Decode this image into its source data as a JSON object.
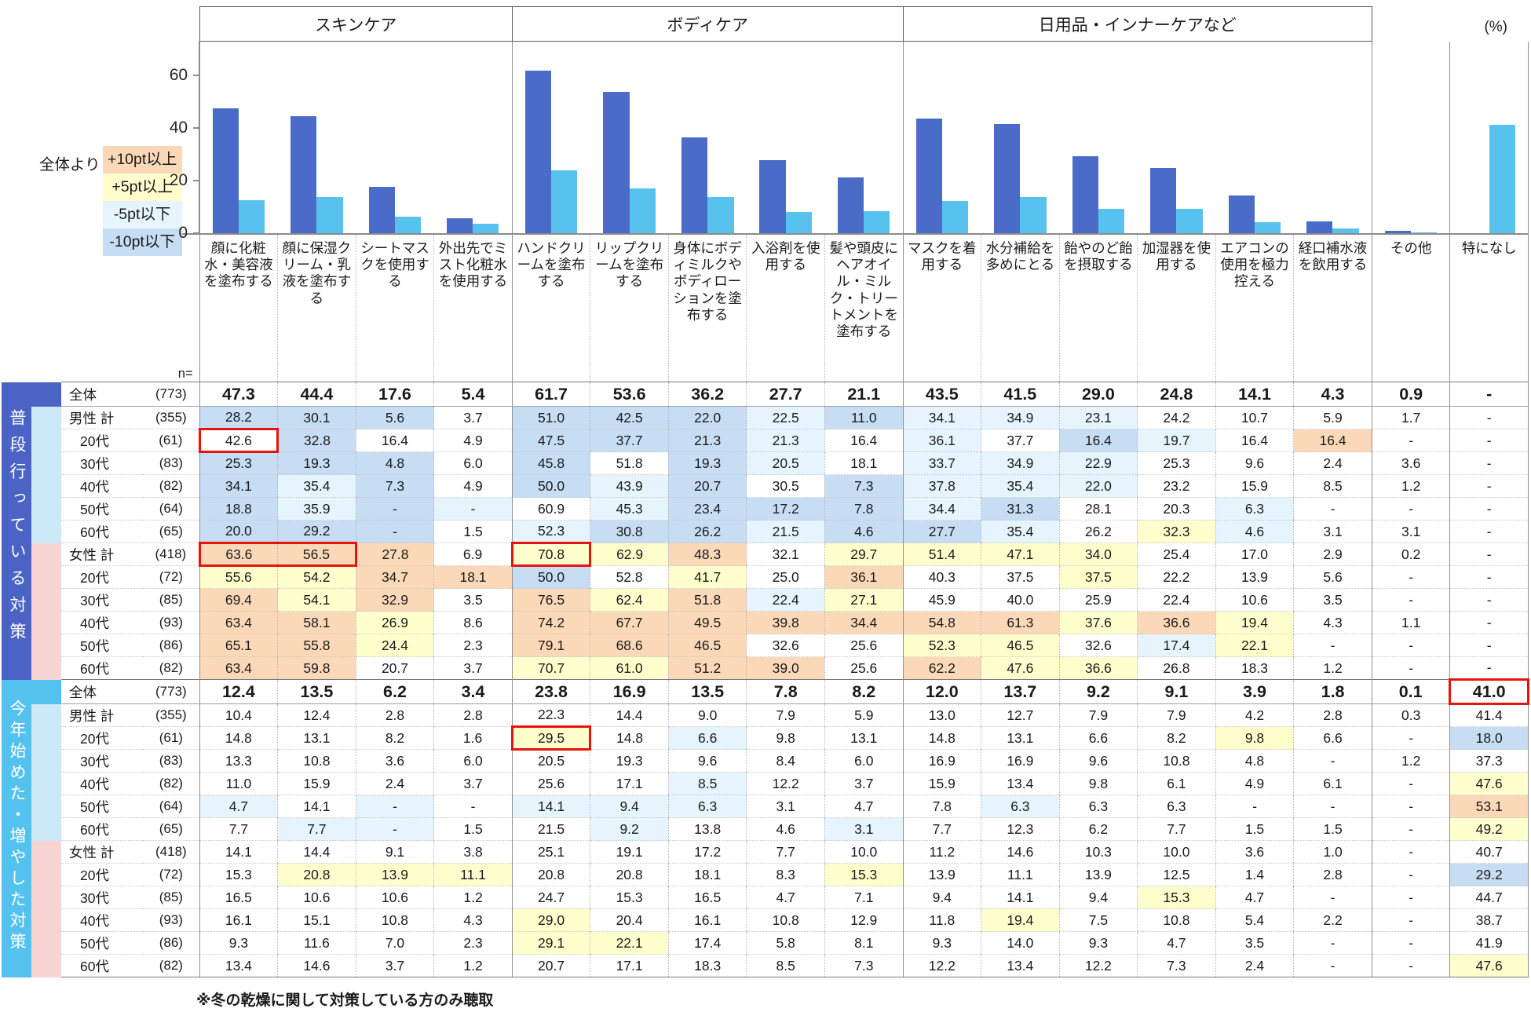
{
  "labels": {
    "n": "n=",
    "unit": "(%)",
    "note": "※冬の乾燥に関して対策している方のみ聴取"
  },
  "legend": {
    "prefix": "全体より",
    "items": [
      {
        "label": "+10pt以上",
        "key": "plus10"
      },
      {
        "label": "+5pt以上",
        "key": "plus5"
      },
      {
        "label": "-5pt以下",
        "key": "minus5"
      },
      {
        "label": "-10pt以下",
        "key": "minus10"
      }
    ]
  },
  "groups": [
    {
      "label": "スキンケア",
      "span": 4
    },
    {
      "label": "ボディケア",
      "span": 5
    },
    {
      "label": "日用品・インナーケアなど",
      "span": 6
    }
  ],
  "colors": {
    "bar_usual": "#4a6cc8",
    "bar_new": "#57c2ee",
    "section1": "#4c63c6",
    "section2": "#54c2ee",
    "male_band": "#cde9f8",
    "female_band": "#f8d5d3",
    "plus10": "#fbd9b8",
    "plus5": "#ffffce",
    "minus5": "#e6f5fd",
    "minus10": "#c7ddf4",
    "highlight": "#e8140c"
  },
  "chart_data": {
    "type": "bar",
    "categories": [
      "顔に化粧水・美容液を塗布する",
      "顔に保湿クリーム・乳液を塗布する",
      "シートマスクを使用する",
      "外出先でミスト化粧水を使用する",
      "ハンドクリームを塗布する",
      "リップクリームを塗布する",
      "身体にボディミルクやボディローションを塗布する",
      "入浴剤を使用する",
      "髪や頭皮にヘアオイル・ミルク・トリートメントを塗布する",
      "マスクを着用する",
      "水分補給を多めにとる",
      "飴やのど飴を摂取する",
      "加湿器を使用する",
      "エアコンの使用を極力控える",
      "経口補水液を飲用する",
      "その他",
      "特になし"
    ],
    "series": [
      {
        "name": "普段行っている対策（全体）",
        "color_key": "bar_usual",
        "values": [
          47.3,
          44.4,
          17.6,
          5.4,
          61.7,
          53.6,
          36.2,
          27.7,
          21.1,
          43.5,
          41.5,
          29.0,
          24.8,
          14.1,
          4.3,
          0.9,
          null
        ]
      },
      {
        "name": "今年始めた・増やした対策（全体）",
        "color_key": "bar_new",
        "values": [
          12.4,
          13.5,
          6.2,
          3.4,
          23.8,
          16.9,
          13.5,
          7.8,
          8.2,
          12.0,
          13.7,
          9.2,
          9.1,
          3.9,
          1.8,
          0.1,
          41.0
        ]
      }
    ],
    "ylim": [
      0,
      72
    ],
    "yticks": [
      0,
      20,
      40,
      60
    ],
    "unit": "(%)",
    "grid": false,
    "legend_position": "none"
  },
  "sections": [
    {
      "title": "普段行っている対策",
      "rows": [
        {
          "label": "全体",
          "n": "(773)",
          "total": true,
          "band": "none",
          "values": [
            "47.3",
            "44.4",
            "17.6",
            "5.4",
            "61.7",
            "53.6",
            "36.2",
            "27.7",
            "21.1",
            "43.5",
            "41.5",
            "29.0",
            "24.8",
            "14.1",
            "4.3",
            "0.9",
            "-"
          ]
        },
        {
          "label": "男性 計",
          "n": "(355)",
          "band": "male",
          "values": [
            "28.2",
            "30.1",
            "5.6",
            "3.7",
            "51.0",
            "42.5",
            "22.0",
            "22.5",
            "11.0",
            "34.1",
            "34.9",
            "23.1",
            "24.2",
            "10.7",
            "5.9",
            "1.7",
            "-"
          ]
        },
        {
          "label": "20代",
          "n": "(61)",
          "indent": true,
          "values": [
            "42.6",
            "32.8",
            "16.4",
            "4.9",
            "47.5",
            "37.7",
            "21.3",
            "21.3",
            "16.4",
            "36.1",
            "37.7",
            "16.4",
            "19.7",
            "16.4",
            "16.4",
            "-",
            "-"
          ]
        },
        {
          "label": "30代",
          "n": "(83)",
          "indent": true,
          "values": [
            "25.3",
            "19.3",
            "4.8",
            "6.0",
            "45.8",
            "51.8",
            "19.3",
            "20.5",
            "18.1",
            "33.7",
            "34.9",
            "22.9",
            "25.3",
            "9.6",
            "2.4",
            "3.6",
            "-"
          ]
        },
        {
          "label": "40代",
          "n": "(82)",
          "indent": true,
          "values": [
            "34.1",
            "35.4",
            "7.3",
            "4.9",
            "50.0",
            "43.9",
            "20.7",
            "30.5",
            "7.3",
            "37.8",
            "35.4",
            "22.0",
            "23.2",
            "15.9",
            "8.5",
            "1.2",
            "-"
          ]
        },
        {
          "label": "50代",
          "n": "(64)",
          "indent": true,
          "values": [
            "18.8",
            "35.9",
            "-",
            "-",
            "60.9",
            "45.3",
            "23.4",
            "17.2",
            "7.8",
            "34.4",
            "31.3",
            "28.1",
            "20.3",
            "6.3",
            "-",
            "-",
            "-"
          ]
        },
        {
          "label": "60代",
          "n": "(65)",
          "indent": true,
          "values": [
            "20.0",
            "29.2",
            "-",
            "1.5",
            "52.3",
            "30.8",
            "26.2",
            "21.5",
            "4.6",
            "27.7",
            "35.4",
            "26.2",
            "32.3",
            "4.6",
            "3.1",
            "3.1",
            "-"
          ]
        },
        {
          "label": "女性 計",
          "n": "(418)",
          "band": "female",
          "values": [
            "63.6",
            "56.5",
            "27.8",
            "6.9",
            "70.8",
            "62.9",
            "48.3",
            "32.1",
            "29.7",
            "51.4",
            "47.1",
            "34.0",
            "25.4",
            "17.0",
            "2.9",
            "0.2",
            "-"
          ]
        },
        {
          "label": "20代",
          "n": "(72)",
          "indent": true,
          "values": [
            "55.6",
            "54.2",
            "34.7",
            "18.1",
            "50.0",
            "52.8",
            "41.7",
            "25.0",
            "36.1",
            "40.3",
            "37.5",
            "37.5",
            "22.2",
            "13.9",
            "5.6",
            "-",
            "-"
          ]
        },
        {
          "label": "30代",
          "n": "(85)",
          "indent": true,
          "values": [
            "69.4",
            "54.1",
            "32.9",
            "3.5",
            "76.5",
            "62.4",
            "51.8",
            "22.4",
            "27.1",
            "45.9",
            "40.0",
            "25.9",
            "22.4",
            "10.6",
            "3.5",
            "-",
            "-"
          ]
        },
        {
          "label": "40代",
          "n": "(93)",
          "indent": true,
          "values": [
            "63.4",
            "58.1",
            "26.9",
            "8.6",
            "74.2",
            "67.7",
            "49.5",
            "39.8",
            "34.4",
            "54.8",
            "61.3",
            "37.6",
            "36.6",
            "19.4",
            "4.3",
            "1.1",
            "-"
          ]
        },
        {
          "label": "50代",
          "n": "(86)",
          "indent": true,
          "values": [
            "65.1",
            "55.8",
            "24.4",
            "2.3",
            "79.1",
            "68.6",
            "46.5",
            "32.6",
            "25.6",
            "52.3",
            "46.5",
            "32.6",
            "17.4",
            "22.1",
            "-",
            "-",
            "-"
          ]
        },
        {
          "label": "60代",
          "n": "(82)",
          "indent": true,
          "values": [
            "63.4",
            "59.8",
            "20.7",
            "3.7",
            "70.7",
            "61.0",
            "51.2",
            "39.0",
            "25.6",
            "62.2",
            "47.6",
            "36.6",
            "26.8",
            "18.3",
            "1.2",
            "-",
            "-"
          ]
        }
      ]
    },
    {
      "title": "今年始めた・増やした対策",
      "rows": [
        {
          "label": "全体",
          "n": "(773)",
          "total": true,
          "band": "none",
          "values": [
            "12.4",
            "13.5",
            "6.2",
            "3.4",
            "23.8",
            "16.9",
            "13.5",
            "7.8",
            "8.2",
            "12.0",
            "13.7",
            "9.2",
            "9.1",
            "3.9",
            "1.8",
            "0.1",
            "41.0"
          ]
        },
        {
          "label": "男性 計",
          "n": "(355)",
          "band": "male",
          "values": [
            "10.4",
            "12.4",
            "2.8",
            "2.8",
            "22.3",
            "14.4",
            "9.0",
            "7.9",
            "5.9",
            "13.0",
            "12.7",
            "7.9",
            "7.9",
            "4.2",
            "2.8",
            "0.3",
            "41.4"
          ]
        },
        {
          "label": "20代",
          "n": "(61)",
          "indent": true,
          "values": [
            "14.8",
            "13.1",
            "8.2",
            "1.6",
            "29.5",
            "14.8",
            "6.6",
            "9.8",
            "13.1",
            "14.8",
            "13.1",
            "6.6",
            "8.2",
            "9.8",
            "6.6",
            "-",
            "18.0"
          ]
        },
        {
          "label": "30代",
          "n": "(83)",
          "indent": true,
          "values": [
            "13.3",
            "10.8",
            "3.6",
            "6.0",
            "20.5",
            "19.3",
            "9.6",
            "8.4",
            "6.0",
            "16.9",
            "16.9",
            "9.6",
            "10.8",
            "4.8",
            "-",
            "1.2",
            "37.3"
          ]
        },
        {
          "label": "40代",
          "n": "(82)",
          "indent": true,
          "values": [
            "11.0",
            "15.9",
            "2.4",
            "3.7",
            "25.6",
            "17.1",
            "8.5",
            "12.2",
            "3.7",
            "15.9",
            "13.4",
            "9.8",
            "6.1",
            "4.9",
            "6.1",
            "-",
            "47.6"
          ]
        },
        {
          "label": "50代",
          "n": "(64)",
          "indent": true,
          "values": [
            "4.7",
            "14.1",
            "-",
            "-",
            "14.1",
            "9.4",
            "6.3",
            "3.1",
            "4.7",
            "7.8",
            "6.3",
            "6.3",
            "6.3",
            "-",
            "-",
            "-",
            "53.1"
          ]
        },
        {
          "label": "60代",
          "n": "(65)",
          "indent": true,
          "values": [
            "7.7",
            "7.7",
            "-",
            "1.5",
            "21.5",
            "9.2",
            "13.8",
            "4.6",
            "3.1",
            "7.7",
            "12.3",
            "6.2",
            "7.7",
            "1.5",
            "1.5",
            "-",
            "49.2"
          ]
        },
        {
          "label": "女性 計",
          "n": "(418)",
          "band": "female",
          "values": [
            "14.1",
            "14.4",
            "9.1",
            "3.8",
            "25.1",
            "19.1",
            "17.2",
            "7.7",
            "10.0",
            "11.2",
            "14.6",
            "10.3",
            "10.0",
            "3.6",
            "1.0",
            "-",
            "40.7"
          ]
        },
        {
          "label": "20代",
          "n": "(72)",
          "indent": true,
          "values": [
            "15.3",
            "20.8",
            "13.9",
            "11.1",
            "20.8",
            "20.8",
            "18.1",
            "8.3",
            "15.3",
            "13.9",
            "11.1",
            "13.9",
            "12.5",
            "1.4",
            "2.8",
            "-",
            "29.2"
          ]
        },
        {
          "label": "30代",
          "n": "(85)",
          "indent": true,
          "values": [
            "16.5",
            "10.6",
            "10.6",
            "1.2",
            "24.7",
            "15.3",
            "16.5",
            "4.7",
            "7.1",
            "9.4",
            "14.1",
            "9.4",
            "15.3",
            "4.7",
            "-",
            "-",
            "44.7"
          ]
        },
        {
          "label": "40代",
          "n": "(93)",
          "indent": true,
          "values": [
            "16.1",
            "15.1",
            "10.8",
            "4.3",
            "29.0",
            "20.4",
            "16.1",
            "10.8",
            "12.9",
            "11.8",
            "19.4",
            "7.5",
            "10.8",
            "5.4",
            "2.2",
            "-",
            "38.7"
          ]
        },
        {
          "label": "50代",
          "n": "(86)",
          "indent": true,
          "values": [
            "9.3",
            "11.6",
            "7.0",
            "2.3",
            "29.1",
            "22.1",
            "17.4",
            "5.8",
            "8.1",
            "9.3",
            "14.0",
            "9.3",
            "4.7",
            "3.5",
            "-",
            "-",
            "41.9"
          ]
        },
        {
          "label": "60代",
          "n": "(82)",
          "indent": true,
          "values": [
            "13.4",
            "14.6",
            "3.7",
            "1.2",
            "20.7",
            "17.1",
            "18.3",
            "8.5",
            "7.3",
            "12.2",
            "13.4",
            "12.2",
            "7.3",
            "2.4",
            "-",
            "-",
            "47.6"
          ]
        }
      ]
    }
  ],
  "color_rule": {
    "plus10": ">=+10pt",
    "plus5": ">=+5pt",
    "minus5": "<=-5pt",
    "minus10": "<=-10pt",
    "base_row": "全体"
  },
  "highlights": [
    {
      "s": 0,
      "r": 2,
      "c": 0,
      "edges": "tblr"
    },
    {
      "s": 0,
      "r": 7,
      "c": 0,
      "edges": "tbl"
    },
    {
      "s": 0,
      "r": 7,
      "c": 1,
      "edges": "tbr"
    },
    {
      "s": 0,
      "r": 7,
      "c": 4,
      "edges": "tblr"
    },
    {
      "s": 1,
      "r": 0,
      "c": 16,
      "edges": "tblr"
    },
    {
      "s": 1,
      "r": 2,
      "c": 4,
      "edges": "tblr"
    }
  ]
}
